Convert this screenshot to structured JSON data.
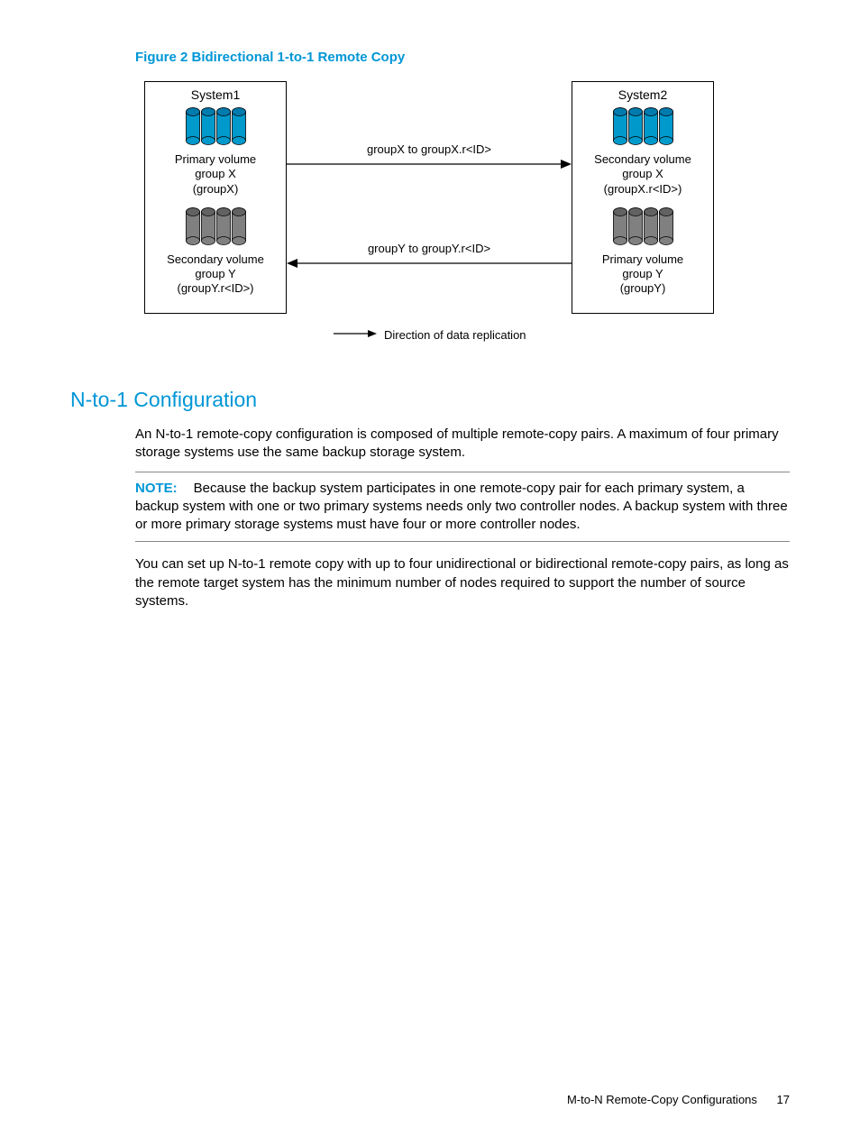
{
  "figure": {
    "caption": "Figure 2 Bidirectional 1-to-1 Remote Copy",
    "system1": {
      "title": "System1",
      "vol1": {
        "line1": "Primary volume",
        "line2": "group X",
        "line3": "(groupX)",
        "color": "#0099cc"
      },
      "vol2": {
        "line1": "Secondary volume",
        "line2": "group Y",
        "line3": "(groupY.r<ID>)",
        "color": "#808080"
      }
    },
    "system2": {
      "title": "System2",
      "vol1": {
        "line1": "Secondary volume",
        "line2": "group X",
        "line3": "(groupX.r<ID>)",
        "color": "#0099cc"
      },
      "vol2": {
        "line1": "Primary volume",
        "line2": "group Y",
        "line3": "(groupY)",
        "color": "#808080"
      }
    },
    "arrow1_label": "groupX to groupX.r<ID>",
    "arrow2_label": "groupY to groupY.r<ID>",
    "legend": "Direction of data replication"
  },
  "section": {
    "heading": "N-to-1 Configuration",
    "para1": "An N-to-1 remote-copy configuration is composed of multiple remote-copy pairs. A maximum of four primary storage systems use the same backup storage system.",
    "note_label": "NOTE:",
    "note_text": "Because the backup system participates in one remote-copy pair for each primary system, a backup system with one or two primary systems needs only two controller nodes. A backup system with three or more primary storage systems must have four or more controller nodes.",
    "para2": "You can set up N-to-1 remote copy with up to four unidirectional or bidirectional remote-copy pairs, as long as the remote target system has the minimum number of nodes required to support the number of source systems."
  },
  "footer": {
    "text": "M-to-N Remote-Copy Configurations",
    "page": "17"
  },
  "colors": {
    "accent": "#0096d6",
    "cyl_blue": "#0099cc",
    "cyl_gray": "#808080"
  }
}
